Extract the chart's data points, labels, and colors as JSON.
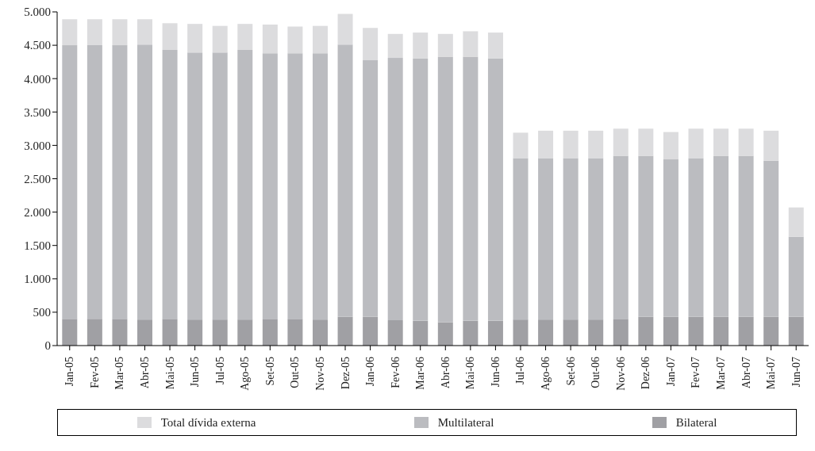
{
  "chart_data": {
    "type": "bar",
    "stacked": true,
    "categories": [
      "Jan-05",
      "Fev-05",
      "Mar-05",
      "Abr-05",
      "Mai-05",
      "Jun-05",
      "Jul-05",
      "Ago-05",
      "Set-05",
      "Out-05",
      "Nov-05",
      "Dez-05",
      "Jan-06",
      "Fev-06",
      "Mar-06",
      "Abr-06",
      "Mai-06",
      "Jun-06",
      "Jul-06",
      "Ago-06",
      "Set-06",
      "Out-06",
      "Nov-06",
      "Dez-06",
      "Jan-07",
      "Fev-07",
      "Mar-07",
      "Abr-07",
      "Mai-07",
      "Jun-07"
    ],
    "series": [
      {
        "name": "Bilateral",
        "color": "#a0a0a4",
        "values": [
          400,
          400,
          400,
          390,
          400,
          390,
          390,
          390,
          400,
          400,
          390,
          430,
          430,
          380,
          370,
          350,
          370,
          370,
          390,
          390,
          390,
          390,
          400,
          430,
          430,
          430,
          430,
          430,
          430,
          430
        ]
      },
      {
        "name": "Multilateral",
        "color": "#bbbcc0",
        "values": [
          4100,
          4100,
          4100,
          4120,
          4030,
          4000,
          4000,
          4040,
          3980,
          3980,
          3990,
          4080,
          3850,
          3930,
          3930,
          3980,
          3960,
          3930,
          2420,
          2420,
          2420,
          2420,
          2440,
          2410,
          2360,
          2380,
          2410,
          2410,
          2340,
          1200
        ]
      },
      {
        "name": "Total dívida externa",
        "color": "#dcdcde",
        "values": [
          390,
          390,
          390,
          380,
          400,
          430,
          400,
          390,
          430,
          400,
          410,
          460,
          480,
          360,
          390,
          340,
          380,
          390,
          380,
          410,
          410,
          410,
          410,
          410,
          410,
          440,
          410,
          410,
          450,
          440
        ]
      }
    ],
    "ylim": [
      0,
      5000
    ],
    "yticks": [
      0,
      500,
      {
        "value": 1000,
        "label": "1.000"
      },
      {
        "value": 1500,
        "label": "1.500"
      },
      {
        "value": 2000,
        "label": "2.000"
      },
      {
        "value": 2500,
        "label": "2.500"
      },
      {
        "value": 3000,
        "label": "3.000"
      },
      {
        "value": 3500,
        "label": "3.500"
      },
      {
        "value": 4000,
        "label": "4.000"
      },
      {
        "value": 4500,
        "label": "4.500"
      },
      {
        "value": 5000,
        "label": "5.000"
      }
    ],
    "grid": false,
    "legend": "bottom"
  }
}
